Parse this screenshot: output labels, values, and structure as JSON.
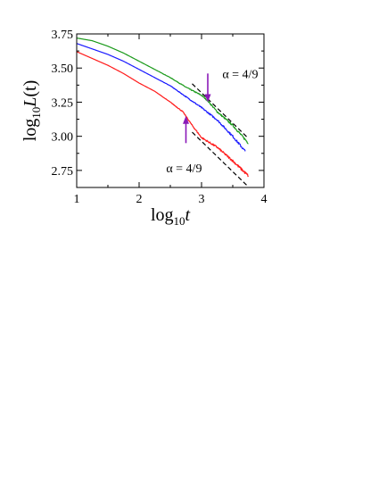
{
  "chart_data": {
    "type": "line",
    "xlabel_base": "log",
    "xlabel_sub": "10",
    "xlabel_var": "t",
    "ylabel_base": "log",
    "ylabel_sub": "10",
    "ylabel_var": "L",
    "ylabel_arg": "(t)",
    "xlim": [
      1,
      4
    ],
    "ylim": [
      2.625,
      3.75
    ],
    "xticks": [
      1,
      2,
      3,
      4
    ],
    "xtick_labels": [
      "1",
      "2",
      "3",
      "4"
    ],
    "yticks": [
      2.75,
      3.0,
      3.25,
      3.5,
      3.75
    ],
    "ytick_labels": [
      "2.75",
      "3.00",
      "3.25",
      "3.50",
      "3.75"
    ],
    "grid": false,
    "legend": "none",
    "series": [
      {
        "color": "#1a9a1a",
        "x": [
          1.0,
          1.25,
          1.5,
          1.75,
          2.0,
          2.25,
          2.5,
          2.75,
          3.0,
          3.1,
          3.25,
          3.5,
          3.75
        ],
        "y": [
          3.72,
          3.7,
          3.66,
          3.61,
          3.55,
          3.49,
          3.43,
          3.36,
          3.3,
          3.26,
          3.18,
          3.08,
          2.95
        ],
        "noise": 0.008
      },
      {
        "color": "#1a1aff",
        "x": [
          1.0,
          1.25,
          1.5,
          1.75,
          2.0,
          2.25,
          2.5,
          2.75,
          3.0,
          3.25,
          3.5,
          3.7
        ],
        "y": [
          3.68,
          3.64,
          3.6,
          3.55,
          3.49,
          3.43,
          3.37,
          3.29,
          3.21,
          3.12,
          3.0,
          2.89
        ],
        "noise": 0.009
      },
      {
        "color": "#ff1a1a",
        "x": [
          1.0,
          1.25,
          1.5,
          1.75,
          2.0,
          2.25,
          2.5,
          2.7,
          2.85,
          3.0,
          3.25,
          3.5,
          3.75
        ],
        "y": [
          3.62,
          3.57,
          3.52,
          3.46,
          3.39,
          3.33,
          3.25,
          3.18,
          3.08,
          2.99,
          2.92,
          2.82,
          2.71
        ],
        "noise": 0.01
      }
    ],
    "reference_lines": [
      {
        "label": "α = 4/9",
        "x": [
          2.85,
          3.75
        ],
        "y": [
          3.385,
          2.985
        ]
      },
      {
        "label": "α = 4/9",
        "x": [
          2.85,
          3.75
        ],
        "y": [
          3.03,
          2.63
        ]
      }
    ],
    "annotations": [
      {
        "text": "α = 4/9",
        "x": 3.62,
        "y": 3.425
      },
      {
        "text": "α = 4/9",
        "x": 2.72,
        "y": 2.735
      }
    ],
    "arrows": [
      {
        "color": "#8a1ab8",
        "x": 3.1,
        "y_from": 3.46,
        "y_to": 3.25
      },
      {
        "color": "#8a1ab8",
        "x": 2.75,
        "y_from": 2.95,
        "y_to": 3.15
      }
    ]
  }
}
